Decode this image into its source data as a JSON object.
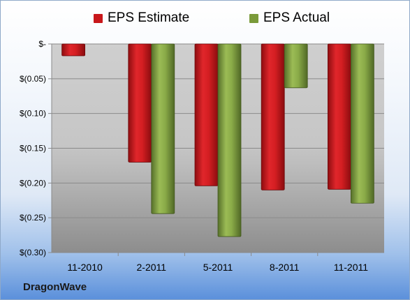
{
  "brand": {
    "name": "DragonWave"
  },
  "colors": {
    "estimate": "#c8171b",
    "actual": "#7a9a3a"
  },
  "chart_data": {
    "type": "bar",
    "categories": [
      "11-2010",
      "2-2011",
      "5-2011",
      "8-2011",
      "11-2011"
    ],
    "series": [
      {
        "name": "EPS Estimate",
        "values": [
          -0.017,
          -0.17,
          -0.204,
          -0.21,
          -0.209
        ]
      },
      {
        "name": "EPS Actual",
        "values": [
          null,
          -0.244,
          -0.277,
          -0.063,
          -0.229
        ]
      }
    ],
    "ylim": [
      -0.3,
      0
    ],
    "y_ticks": [
      0,
      -0.05,
      -0.1,
      -0.15,
      -0.2,
      -0.25,
      -0.3
    ],
    "y_tick_labels": [
      "$-",
      "$(0.05)",
      "$(0.10)",
      "$(0.15)",
      "$(0.20)",
      "$(0.25)",
      "$(0.30)"
    ],
    "grid": true,
    "legend_position": "top"
  }
}
